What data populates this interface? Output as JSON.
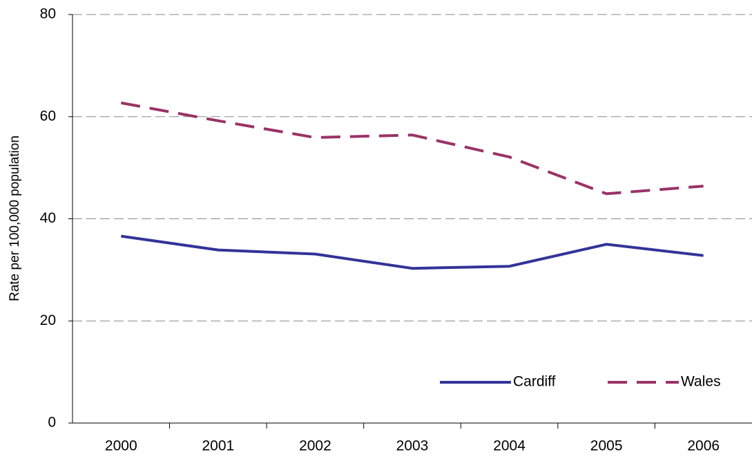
{
  "chart_data": {
    "type": "line",
    "y_label": "Rate per 100,000 population",
    "categories": [
      "2000",
      "2001",
      "2002",
      "2003",
      "2004",
      "2005",
      "2006"
    ],
    "series": [
      {
        "name": "Cardiff",
        "color": "#333399",
        "dash": "solid",
        "values": [
          36.6,
          33.9,
          33.1,
          30.3,
          30.7,
          35.0,
          32.8
        ]
      },
      {
        "name": "Wales",
        "color": "#993366",
        "dash": "dashed",
        "values": [
          62.7,
          59.2,
          55.9,
          56.4,
          52.1,
          44.9,
          46.4
        ]
      }
    ],
    "ylim": [
      0,
      80
    ],
    "yticks": [
      0,
      20,
      40,
      60,
      80
    ],
    "grid": true,
    "legend": "lower right"
  }
}
